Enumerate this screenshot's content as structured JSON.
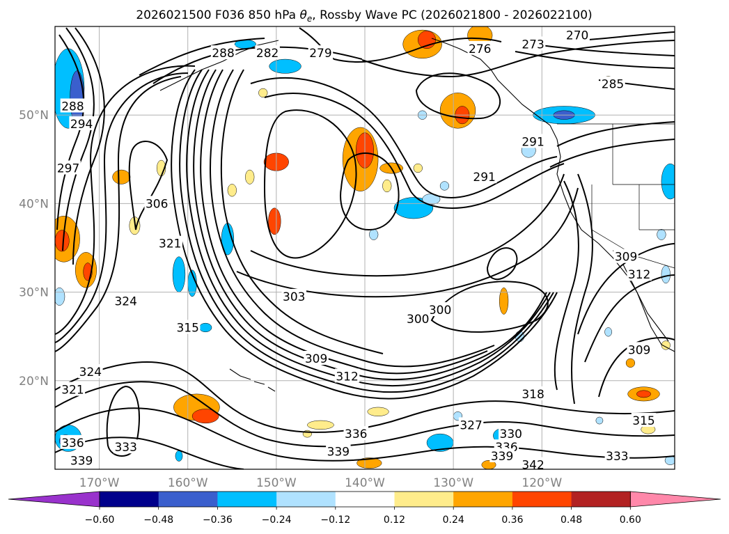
{
  "chart_data": {
    "type": "contour-map",
    "title": "2026021500 F036 850 hPa θe, Rossby Wave PC (2026021800 - 2026022100)",
    "title_parts": {
      "prefix": "2026021500 F036 850 hPa ",
      "symbol": "θ",
      "subscript": "e",
      "suffix": ", Rossby Wave PC (2026021800 - 2026022100)"
    },
    "lon_ticks": [
      "170°W",
      "160°W",
      "150°W",
      "140°W",
      "130°W",
      "120°W"
    ],
    "lon_values": [
      -170,
      -160,
      -150,
      -140,
      -130,
      -120
    ],
    "lat_ticks": [
      "50°N",
      "40°N",
      "30°N",
      "20°N"
    ],
    "lat_values": [
      50,
      40,
      30,
      20
    ],
    "lon_range": [
      -175,
      -105
    ],
    "lat_range": [
      10,
      60
    ],
    "grid": true,
    "contour_interval": 3,
    "contour_labels": [
      {
        "value": "288",
        "lon": -156,
        "lat": 57
      },
      {
        "value": "282",
        "lon": -151,
        "lat": 57
      },
      {
        "value": "279",
        "lon": -145,
        "lat": 57
      },
      {
        "value": "276",
        "lon": -127,
        "lat": 57.5
      },
      {
        "value": "273",
        "lon": -121,
        "lat": 58
      },
      {
        "value": "270",
        "lon": -116,
        "lat": 59
      },
      {
        "value": "285",
        "lon": -112,
        "lat": 53.5
      },
      {
        "value": "288",
        "lon": -173,
        "lat": 51
      },
      {
        "value": "294",
        "lon": -172,
        "lat": 49
      },
      {
        "value": "297",
        "lon": -173.5,
        "lat": 44
      },
      {
        "value": "306",
        "lon": -163.5,
        "lat": 40
      },
      {
        "value": "321",
        "lon": -162,
        "lat": 35.5
      },
      {
        "value": "324",
        "lon": -167,
        "lat": 29
      },
      {
        "value": "315",
        "lon": -160,
        "lat": 26
      },
      {
        "value": "303",
        "lon": -148,
        "lat": 29.5
      },
      {
        "value": "300",
        "lon": -131.5,
        "lat": 28
      },
      {
        "value": "300",
        "lon": -134,
        "lat": 27
      },
      {
        "value": "309",
        "lon": -145.5,
        "lat": 22.5
      },
      {
        "value": "312",
        "lon": -142,
        "lat": 20.5
      },
      {
        "value": "291",
        "lon": -126.5,
        "lat": 43
      },
      {
        "value": "291",
        "lon": -121,
        "lat": 47
      },
      {
        "value": "309",
        "lon": -110.5,
        "lat": 34
      },
      {
        "value": "312",
        "lon": -109,
        "lat": 32
      },
      {
        "value": "309",
        "lon": -109,
        "lat": 23.5
      },
      {
        "value": "318",
        "lon": -121,
        "lat": 18.5
      },
      {
        "value": "315",
        "lon": -108.5,
        "lat": 15.5
      },
      {
        "value": "327",
        "lon": -128,
        "lat": 15
      },
      {
        "value": "330",
        "lon": -123.5,
        "lat": 14
      },
      {
        "value": "336",
        "lon": -141,
        "lat": 14
      },
      {
        "value": "336",
        "lon": -124,
        "lat": 12.5
      },
      {
        "value": "339",
        "lon": -143,
        "lat": 12
      },
      {
        "value": "339",
        "lon": -124.5,
        "lat": 11.5
      },
      {
        "value": "333",
        "lon": -167,
        "lat": 12.5
      },
      {
        "value": "336",
        "lon": -173,
        "lat": 13
      },
      {
        "value": "339",
        "lon": -172,
        "lat": 11
      },
      {
        "value": "333",
        "lon": -111.5,
        "lat": 11.5
      },
      {
        "value": "342",
        "lon": -121,
        "lat": 10.5
      },
      {
        "value": "321",
        "lon": -173,
        "lat": 19
      },
      {
        "value": "324",
        "lon": -171,
        "lat": 21
      }
    ],
    "colorbar": {
      "ticks": [
        "−0.60",
        "−0.48",
        "−0.36",
        "−0.24",
        "−0.12",
        "0.12",
        "0.24",
        "0.36",
        "0.48",
        "0.60"
      ],
      "colors": [
        "#9932cc",
        "#00008b",
        "#3a5fcd",
        "#00bfff",
        "#b0e2ff",
        "#ffffff",
        "#ffec8b",
        "#ffa500",
        "#ff4500",
        "#b22222",
        "#ff88aa"
      ],
      "extend": "both"
    },
    "shading": [
      {
        "kind": "blob",
        "lon": -173.5,
        "lat": 53.0,
        "r": 1.8,
        "rlat": 4.5,
        "value": -0.3
      },
      {
        "kind": "blob",
        "lon": -172.5,
        "lat": 52.0,
        "r": 0.8,
        "rlat": 3.0,
        "value": -0.4
      },
      {
        "kind": "blob",
        "lon": -174.0,
        "lat": 36.0,
        "r": 1.8,
        "rlat": 2.6,
        "value": 0.3
      },
      {
        "kind": "blob",
        "lon": -174.2,
        "lat": 35.8,
        "r": 0.8,
        "rlat": 1.2,
        "value": 0.4
      },
      {
        "kind": "blob",
        "lon": -171.5,
        "lat": 32.5,
        "r": 1.2,
        "rlat": 2.0,
        "value": 0.3
      },
      {
        "kind": "blob",
        "lon": -171.3,
        "lat": 32.3,
        "r": 0.5,
        "rlat": 1.0,
        "value": 0.4
      },
      {
        "kind": "blob",
        "lon": -174.5,
        "lat": 29.5,
        "r": 0.6,
        "rlat": 1.0,
        "value": -0.2
      },
      {
        "kind": "blob",
        "lon": -167.5,
        "lat": 43.0,
        "r": 1.0,
        "rlat": 0.8,
        "value": 0.28
      },
      {
        "kind": "blob",
        "lon": -166.0,
        "lat": 37.5,
        "r": 0.6,
        "rlat": 1.0,
        "value": 0.18
      },
      {
        "kind": "blob",
        "lon": -163.0,
        "lat": 44.0,
        "r": 0.5,
        "rlat": 0.9,
        "value": 0.15
      },
      {
        "kind": "blob",
        "lon": -161.0,
        "lat": 32.0,
        "r": 0.7,
        "rlat": 2.0,
        "value": -0.25
      },
      {
        "kind": "blob",
        "lon": -159.5,
        "lat": 31.0,
        "r": 0.5,
        "rlat": 1.5,
        "value": -0.25
      },
      {
        "kind": "blob",
        "lon": -155.5,
        "lat": 36.0,
        "r": 0.7,
        "rlat": 1.8,
        "value": -0.28
      },
      {
        "kind": "blob",
        "lon": -158.0,
        "lat": 26.0,
        "r": 0.7,
        "rlat": 0.5,
        "value": -0.25
      },
      {
        "kind": "blob",
        "lon": -153.5,
        "lat": 58.0,
        "r": 1.2,
        "rlat": 0.5,
        "value": -0.25
      },
      {
        "kind": "blob",
        "lon": -149.0,
        "lat": 55.5,
        "r": 1.8,
        "rlat": 0.8,
        "value": -0.3
      },
      {
        "kind": "blob",
        "lon": -151.5,
        "lat": 52.5,
        "r": 0.5,
        "rlat": 0.5,
        "value": 0.18
      },
      {
        "kind": "blob",
        "lon": -150.0,
        "lat": 44.7,
        "r": 1.4,
        "rlat": 1.0,
        "value": 0.38
      },
      {
        "kind": "blob",
        "lon": -153.0,
        "lat": 43.0,
        "r": 0.5,
        "rlat": 0.8,
        "value": 0.2
      },
      {
        "kind": "blob",
        "lon": -155.0,
        "lat": 41.5,
        "r": 0.5,
        "rlat": 0.7,
        "value": 0.22
      },
      {
        "kind": "blob",
        "lon": -150.2,
        "lat": 38.0,
        "r": 0.7,
        "rlat": 1.5,
        "value": 0.38
      },
      {
        "kind": "blob",
        "lon": -140.5,
        "lat": 45.0,
        "r": 2.0,
        "rlat": 3.6,
        "value": 0.3
      },
      {
        "kind": "blob",
        "lon": -140.0,
        "lat": 46.0,
        "r": 1.0,
        "rlat": 2.0,
        "value": 0.4
      },
      {
        "kind": "blob",
        "lon": -137.0,
        "lat": 44.0,
        "r": 1.3,
        "rlat": 0.6,
        "value": 0.25
      },
      {
        "kind": "blob",
        "lon": -137.5,
        "lat": 42.0,
        "r": 0.5,
        "rlat": 0.7,
        "value": 0.2
      },
      {
        "kind": "blob",
        "lon": -134.0,
        "lat": 44.0,
        "r": 0.5,
        "rlat": 0.5,
        "value": 0.2
      },
      {
        "kind": "blob",
        "lon": -134.5,
        "lat": 39.5,
        "r": 2.2,
        "rlat": 1.2,
        "value": -0.28
      },
      {
        "kind": "blob",
        "lon": -132.5,
        "lat": 40.5,
        "r": 1.0,
        "rlat": 0.6,
        "value": -0.2
      },
      {
        "kind": "blob",
        "lon": -131.0,
        "lat": 42.0,
        "r": 0.5,
        "rlat": 0.5,
        "value": -0.2
      },
      {
        "kind": "blob",
        "lon": -139.0,
        "lat": 36.5,
        "r": 0.5,
        "rlat": 0.6,
        "value": -0.2
      },
      {
        "kind": "blob",
        "lon": -133.5,
        "lat": 58.0,
        "r": 2.2,
        "rlat": 1.6,
        "value": 0.3
      },
      {
        "kind": "blob",
        "lon": -133.0,
        "lat": 58.5,
        "r": 1.0,
        "rlat": 1.0,
        "value": 0.4
      },
      {
        "kind": "blob",
        "lon": -127.0,
        "lat": 59.0,
        "r": 1.4,
        "rlat": 1.2,
        "value": 0.25
      },
      {
        "kind": "blob",
        "lon": -129.5,
        "lat": 50.5,
        "r": 2.0,
        "rlat": 2.0,
        "value": 0.3
      },
      {
        "kind": "blob",
        "lon": -129.0,
        "lat": 50.0,
        "r": 0.8,
        "rlat": 1.0,
        "value": 0.4
      },
      {
        "kind": "blob",
        "lon": -133.5,
        "lat": 50.0,
        "r": 0.5,
        "rlat": 0.5,
        "value": -0.2
      },
      {
        "kind": "blob",
        "lon": -117.5,
        "lat": 50.0,
        "r": 3.5,
        "rlat": 1.0,
        "value": -0.25
      },
      {
        "kind": "blob",
        "lon": -117.5,
        "lat": 50.0,
        "r": 1.2,
        "rlat": 0.5,
        "value": -0.4
      },
      {
        "kind": "blob",
        "lon": -121.5,
        "lat": 46.0,
        "r": 0.8,
        "rlat": 0.8,
        "value": -0.22
      },
      {
        "kind": "blob",
        "lon": -105.5,
        "lat": 42.5,
        "r": 1.0,
        "rlat": 2.0,
        "value": -0.28
      },
      {
        "kind": "blob",
        "lon": -112.5,
        "lat": 54.0,
        "r": 0.5,
        "rlat": 0.4,
        "value": 0.18
      },
      {
        "kind": "blob",
        "lon": -106.5,
        "lat": 36.5,
        "r": 0.5,
        "rlat": 0.6,
        "value": -0.2
      },
      {
        "kind": "blob",
        "lon": -124.3,
        "lat": 29.0,
        "r": 0.5,
        "rlat": 1.5,
        "value": 0.3
      },
      {
        "kind": "blob",
        "lon": -108.5,
        "lat": 18.5,
        "r": 1.8,
        "rlat": 0.8,
        "value": 0.28
      },
      {
        "kind": "blob",
        "lon": -108.5,
        "lat": 18.5,
        "r": 0.8,
        "rlat": 0.4,
        "value": 0.38
      },
      {
        "kind": "blob",
        "lon": -110.0,
        "lat": 22.0,
        "r": 0.5,
        "rlat": 0.5,
        "value": 0.25
      },
      {
        "kind": "blob",
        "lon": -106.0,
        "lat": 24.0,
        "r": 0.5,
        "rlat": 0.5,
        "value": 0.22
      },
      {
        "kind": "blob",
        "lon": -122.5,
        "lat": 25.0,
        "r": 0.5,
        "rlat": 0.6,
        "value": -0.2
      },
      {
        "kind": "blob",
        "lon": -112.5,
        "lat": 25.5,
        "r": 0.4,
        "rlat": 0.5,
        "value": -0.18
      },
      {
        "kind": "blob",
        "lon": -106.0,
        "lat": 32.0,
        "r": 0.5,
        "rlat": 1.0,
        "value": -0.18
      },
      {
        "kind": "blob",
        "lon": -159.0,
        "lat": 17.0,
        "r": 2.6,
        "rlat": 1.5,
        "value": 0.3
      },
      {
        "kind": "blob",
        "lon": -158.0,
        "lat": 16.0,
        "r": 1.5,
        "rlat": 0.8,
        "value": 0.4
      },
      {
        "kind": "blob",
        "lon": -173.5,
        "lat": 13.5,
        "r": 1.5,
        "rlat": 1.5,
        "value": -0.3
      },
      {
        "kind": "blob",
        "lon": -173.8,
        "lat": 13.2,
        "r": 0.7,
        "rlat": 0.7,
        "value": -0.4
      },
      {
        "kind": "blob",
        "lon": -139.5,
        "lat": 10.7,
        "r": 1.4,
        "rlat": 0.6,
        "value": 0.32
      },
      {
        "kind": "blob",
        "lon": -131.5,
        "lat": 13.0,
        "r": 1.5,
        "rlat": 1.0,
        "value": -0.28
      },
      {
        "kind": "blob",
        "lon": -124.5,
        "lat": 13.8,
        "r": 1.0,
        "rlat": 0.8,
        "value": -0.28
      },
      {
        "kind": "blob",
        "lon": -126.0,
        "lat": 10.5,
        "r": 0.8,
        "rlat": 0.5,
        "value": 0.28
      },
      {
        "kind": "blob",
        "lon": -145.0,
        "lat": 15.0,
        "r": 1.5,
        "rlat": 0.5,
        "value": 0.18
      },
      {
        "kind": "blob",
        "lon": -138.5,
        "lat": 16.5,
        "r": 1.2,
        "rlat": 0.5,
        "value": 0.2
      },
      {
        "kind": "blob",
        "lon": -129.5,
        "lat": 16.0,
        "r": 0.5,
        "rlat": 0.5,
        "value": -0.2
      },
      {
        "kind": "blob",
        "lon": -146.5,
        "lat": 14.0,
        "r": 0.5,
        "rlat": 0.4,
        "value": 0.22
      },
      {
        "kind": "blob",
        "lon": -161.0,
        "lat": 11.5,
        "r": 0.4,
        "rlat": 0.6,
        "value": -0.25
      },
      {
        "kind": "blob",
        "lon": -108.0,
        "lat": 14.5,
        "r": 0.8,
        "rlat": 0.5,
        "value": 0.18
      },
      {
        "kind": "blob",
        "lon": -113.5,
        "lat": 15.5,
        "r": 0.4,
        "rlat": 0.4,
        "value": -0.2
      },
      {
        "kind": "blob",
        "lon": -105.5,
        "lat": 11.0,
        "r": 0.6,
        "rlat": 0.5,
        "value": -0.2
      }
    ]
  }
}
